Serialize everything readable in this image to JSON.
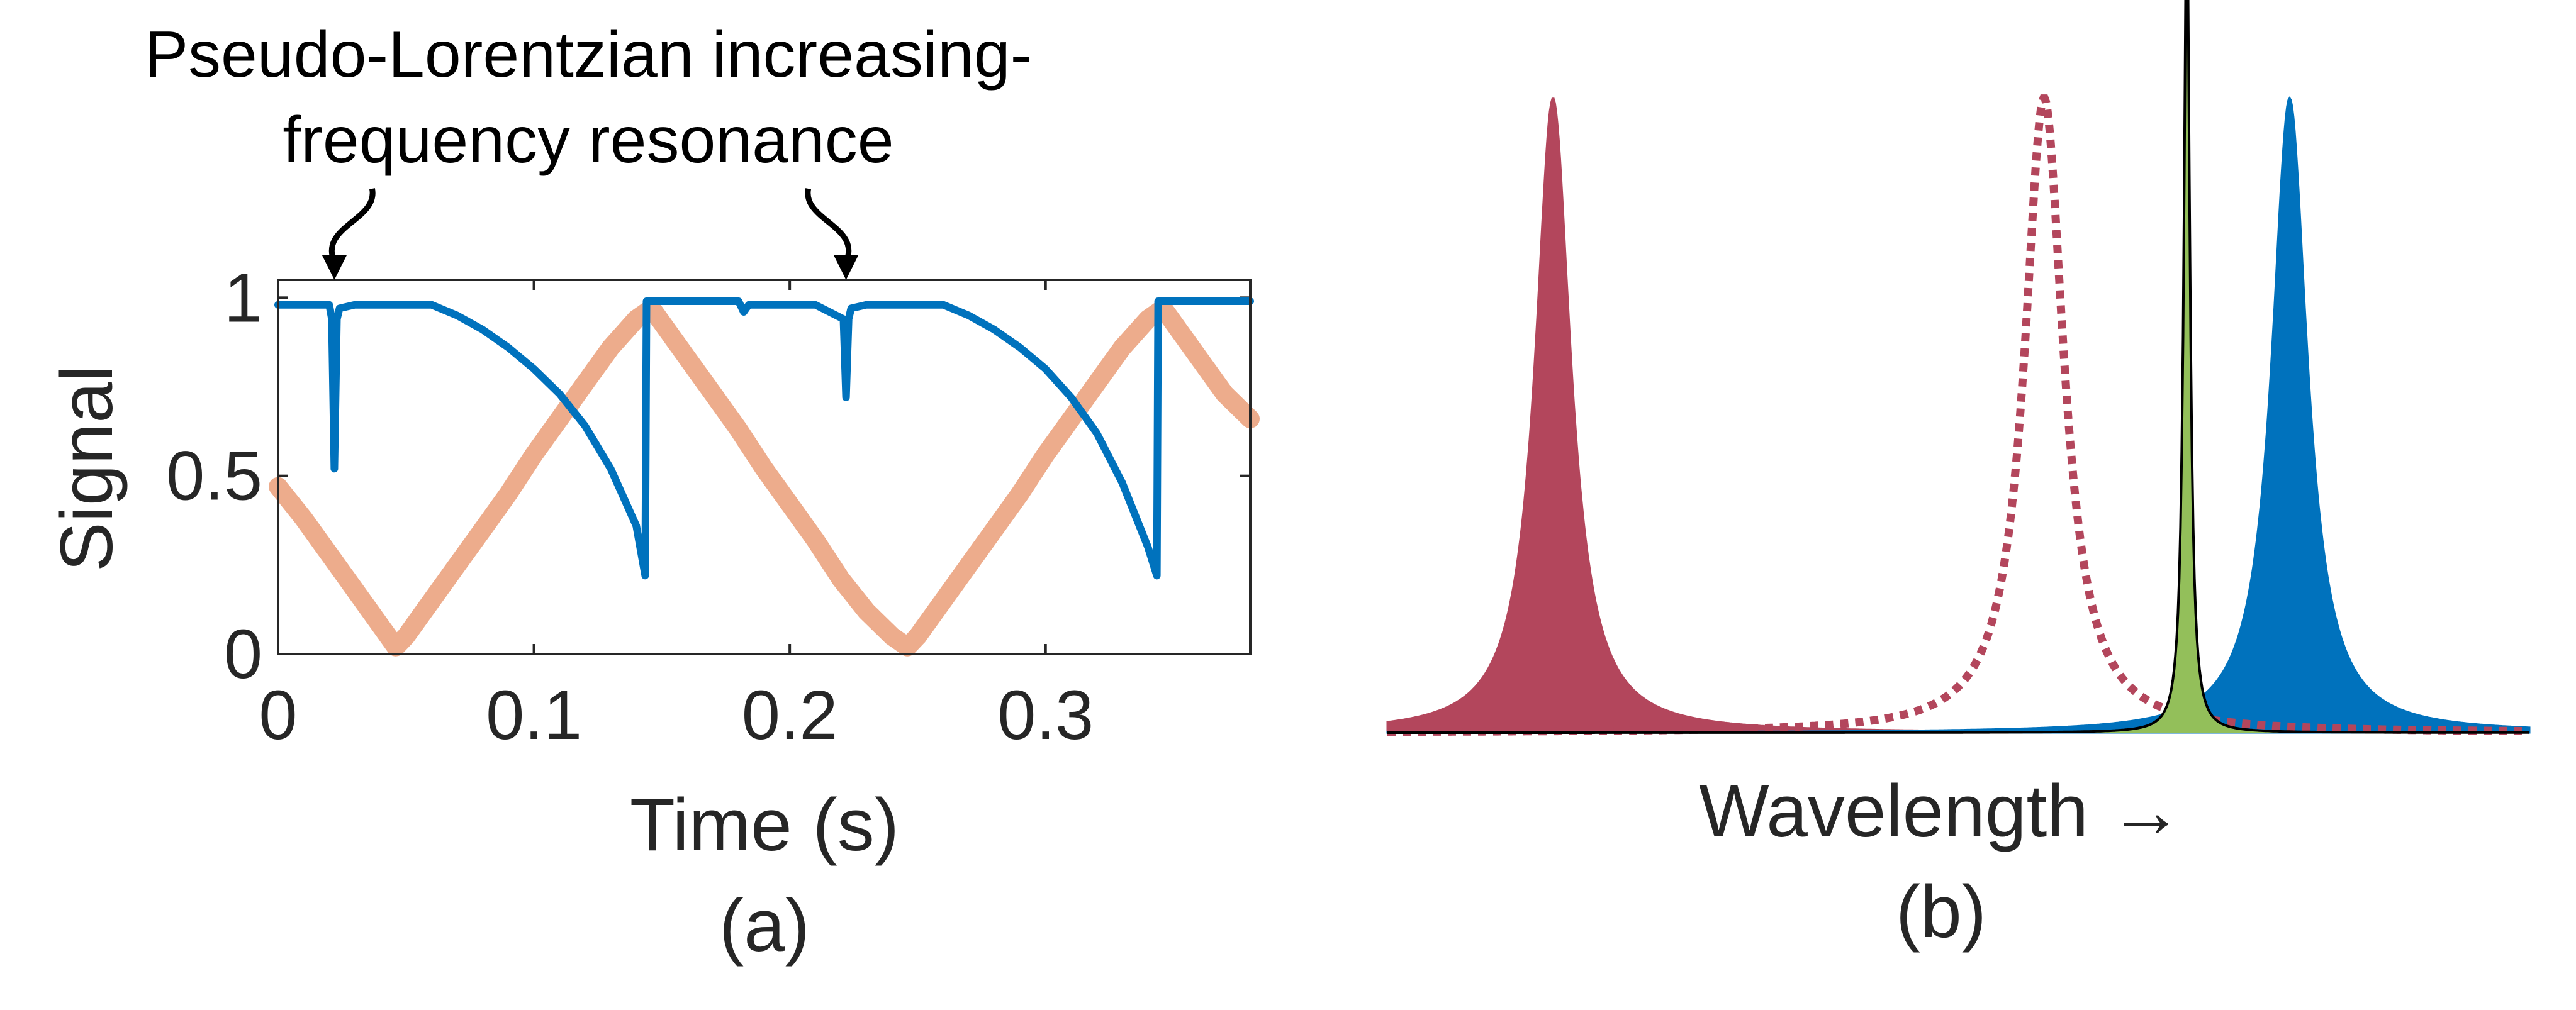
{
  "chart_data": [
    {
      "id": "a",
      "type": "line",
      "panel_label": "(a)",
      "xlabel": "Time (s)",
      "ylabel": "Signal",
      "xlim": [
        0,
        0.38
      ],
      "ylim": [
        0,
        1.05
      ],
      "xticks": [
        0,
        0.1,
        0.2,
        0.3
      ],
      "xtick_labels": [
        "0",
        "0.1",
        "0.2",
        "0.3"
      ],
      "yticks": [
        0,
        0.5,
        1
      ],
      "ytick_labels": [
        "0",
        "0.5",
        "1"
      ],
      "grid": false,
      "annotation": {
        "lines": [
          "Pseudo-Lorentzian increasing-",
          "frequency resonance"
        ],
        "arrow_x": [
          0.022,
          0.222
        ],
        "arrow_y": 1.05
      },
      "series": [
        {
          "color": "#0072BD",
          "x": [
            0,
            0.01,
            0.02,
            0.021,
            0.022,
            0.023,
            0.024,
            0.03,
            0.04,
            0.05,
            0.06,
            0.07,
            0.08,
            0.09,
            0.1,
            0.11,
            0.12,
            0.13,
            0.14,
            0.1435,
            0.144,
            0.15,
            0.16,
            0.17,
            0.18,
            0.182,
            0.183,
            0.184,
            0.19,
            0.2,
            0.21,
            0.221,
            0.222,
            0.223,
            0.224,
            0.23,
            0.24,
            0.25,
            0.26,
            0.27,
            0.28,
            0.29,
            0.3,
            0.31,
            0.32,
            0.33,
            0.34,
            0.3435,
            0.344,
            0.35,
            0.36,
            0.37,
            0.38
          ],
          "y": [
            0.98,
            0.98,
            0.98,
            0.94,
            0.52,
            0.94,
            0.97,
            0.98,
            0.98,
            0.98,
            0.98,
            0.95,
            0.91,
            0.86,
            0.8,
            0.73,
            0.64,
            0.52,
            0.36,
            0.22,
            0.99,
            0.99,
            0.99,
            0.99,
            0.99,
            0.96,
            0.97,
            0.98,
            0.98,
            0.98,
            0.98,
            0.94,
            0.72,
            0.94,
            0.97,
            0.98,
            0.98,
            0.98,
            0.98,
            0.95,
            0.91,
            0.86,
            0.8,
            0.72,
            0.62,
            0.48,
            0.3,
            0.22,
            0.99,
            0.99,
            0.99,
            0.99,
            0.99
          ]
        },
        {
          "color": "#EDAC8C",
          "x": [
            0,
            0.01,
            0.02,
            0.03,
            0.04,
            0.046,
            0.05,
            0.06,
            0.07,
            0.08,
            0.09,
            0.1,
            0.11,
            0.12,
            0.13,
            0.14,
            0.146,
            0.15,
            0.16,
            0.17,
            0.18,
            0.19,
            0.2,
            0.21,
            0.22,
            0.23,
            0.24,
            0.246,
            0.25,
            0.26,
            0.27,
            0.28,
            0.29,
            0.3,
            0.31,
            0.32,
            0.33,
            0.34,
            0.346,
            0.35,
            0.36,
            0.37,
            0.38
          ],
          "y": [
            0.47,
            0.38,
            0.28,
            0.18,
            0.08,
            0.02,
            0.05,
            0.15,
            0.25,
            0.35,
            0.45,
            0.56,
            0.66,
            0.76,
            0.86,
            0.94,
            0.97,
            0.93,
            0.83,
            0.73,
            0.63,
            0.52,
            0.42,
            0.32,
            0.21,
            0.12,
            0.05,
            0.02,
            0.05,
            0.15,
            0.25,
            0.35,
            0.45,
            0.56,
            0.66,
            0.76,
            0.86,
            0.94,
            0.97,
            0.93,
            0.83,
            0.73,
            0.66
          ]
        }
      ]
    },
    {
      "id": "b",
      "type": "area",
      "panel_label": "(b)",
      "xlabel": "Wavelength →",
      "ylabel": "",
      "xlim": [
        0,
        100
      ],
      "ylim": [
        0,
        1.1
      ],
      "axes_visible": false,
      "peaks": [
        {
          "center": 14.5,
          "height": 1.0,
          "hwhm": 1.9,
          "style": "filled",
          "color": "#B3465C"
        },
        {
          "center": 57.5,
          "height": 1.0,
          "hwhm": 2.1,
          "style": "dotted",
          "color": "#B3465C"
        },
        {
          "center": 70.0,
          "height": 1.3,
          "hwhm": 0.32,
          "style": "filled-outline",
          "color": "#93BF5A",
          "outline": "#000000"
        },
        {
          "center": 79.0,
          "height": 1.0,
          "hwhm": 1.9,
          "style": "filled",
          "color": "#0072BD"
        }
      ]
    }
  ]
}
